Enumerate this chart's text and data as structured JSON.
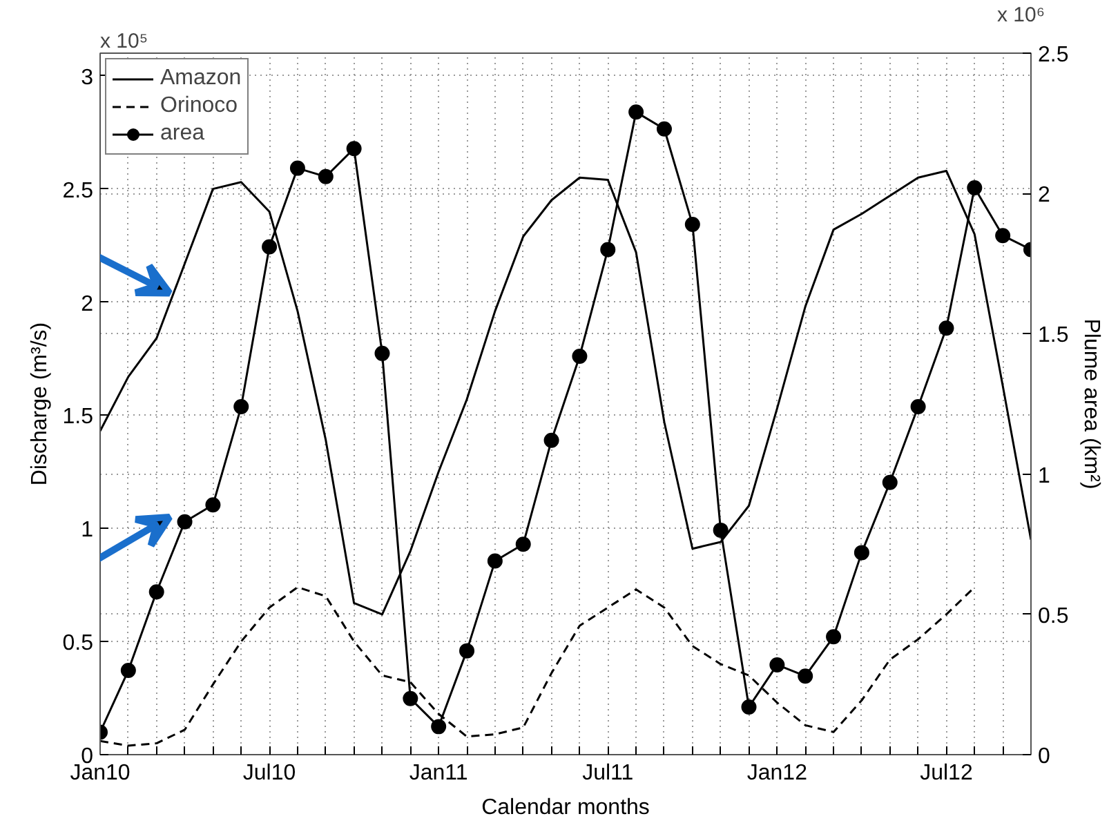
{
  "chart_data": {
    "type": "line",
    "xlabel": "Calendar months",
    "ylabel": "Discharge (m³/s)",
    "y2label": "Plume area (km²)",
    "annotations": [
      "x 10⁵",
      "x 10⁶"
    ],
    "categories": [
      "Jan10",
      null,
      null,
      null,
      null,
      null,
      "Jul10",
      null,
      null,
      null,
      null,
      null,
      "Jan11",
      null,
      null,
      null,
      null,
      null,
      "Jul11",
      null,
      null,
      null,
      null,
      null,
      "Jan12",
      null,
      null,
      null,
      null,
      null,
      "Jul12",
      null,
      null,
      null
    ],
    "ylim": [
      0,
      3.1
    ],
    "yticks": [
      0,
      0.5,
      1,
      1.5,
      2,
      2.5,
      3
    ],
    "y2lim": [
      0,
      2.5
    ],
    "y2ticks": [
      0,
      0.5,
      1,
      1.5,
      2,
      2.5
    ],
    "grid": true,
    "legend": "top left",
    "series": [
      {
        "name": "Amazon",
        "color": "#000000",
        "line_style": "solid",
        "marker": "none",
        "values": [
          1.43,
          1.67,
          1.84,
          2.17,
          2.5,
          2.53,
          2.4,
          1.96,
          1.39,
          0.67,
          0.62,
          0.9,
          1.25,
          1.57,
          1.96,
          2.29,
          2.45,
          2.55,
          2.54,
          2.22,
          1.47,
          0.91,
          0.94,
          1.1,
          1.53,
          1.98,
          2.32,
          2.39,
          2.47,
          2.55,
          2.58,
          2.3,
          1.63,
          0.95
        ]
      },
      {
        "name": "Orinoco",
        "color": "#000000",
        "line_style": "dashed",
        "marker": "none",
        "values": [
          0.06,
          0.04,
          0.05,
          0.11,
          0.31,
          0.5,
          0.65,
          0.74,
          0.7,
          0.5,
          0.35,
          0.32,
          0.18,
          0.08,
          0.09,
          0.12,
          0.36,
          0.57,
          0.65,
          0.73,
          0.65,
          0.48,
          0.4,
          0.35,
          0.23,
          0.13,
          0.1,
          0.24,
          0.42,
          0.51,
          0.62,
          0.74,
          null,
          null
        ]
      },
      {
        "name": "area",
        "color": "#000000",
        "line_style": "solid",
        "marker": "circle",
        "axis": "y2",
        "values": [
          0.08,
          0.3,
          0.58,
          0.83,
          0.89,
          1.24,
          1.81,
          2.09,
          2.06,
          2.16,
          1.43,
          0.2,
          0.1,
          0.37,
          0.69,
          0.75,
          1.12,
          1.42,
          1.8,
          2.29,
          2.23,
          1.89,
          0.8,
          0.17,
          0.32,
          0.28,
          0.42,
          0.72,
          0.97,
          1.24,
          1.52,
          2.02,
          1.85,
          1.8
        ]
      }
    ]
  }
}
